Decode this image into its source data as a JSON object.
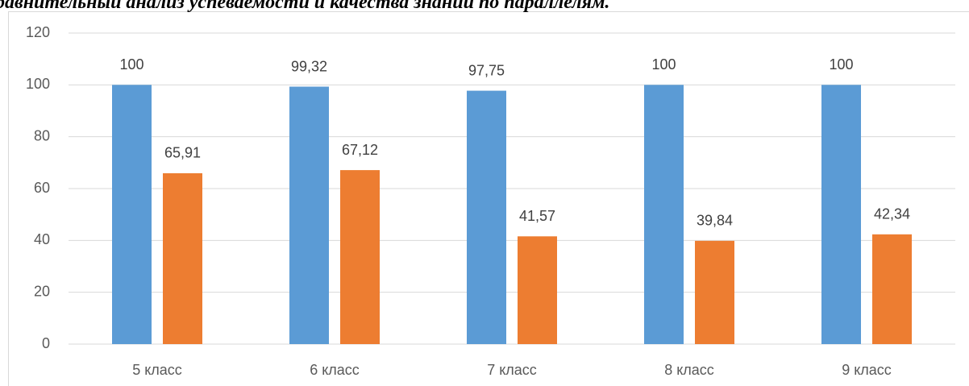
{
  "chart_data": {
    "type": "bar",
    "title": "Сравнительный анализ успеваемости и качества знаний по параллелям.",
    "categories": [
      "5 класс",
      "6 класс",
      "7 класс",
      "8 класс",
      "9 класс"
    ],
    "series": [
      {
        "color": "#5b9bd5",
        "values": [
          100,
          99.32,
          97.75,
          100,
          100
        ],
        "value_labels": [
          "100",
          "99,32",
          "97,75",
          "100",
          "100"
        ]
      },
      {
        "color": "#ed7d31",
        "values": [
          65.91,
          67.12,
          41.57,
          39.84,
          42.34
        ],
        "value_labels": [
          "65,91",
          "67,12",
          "41,57",
          "39,84",
          "42,34"
        ]
      }
    ],
    "ylim": [
      0,
      120
    ],
    "yticks": [
      0,
      20,
      40,
      60,
      80,
      100,
      120
    ],
    "grid": true
  }
}
